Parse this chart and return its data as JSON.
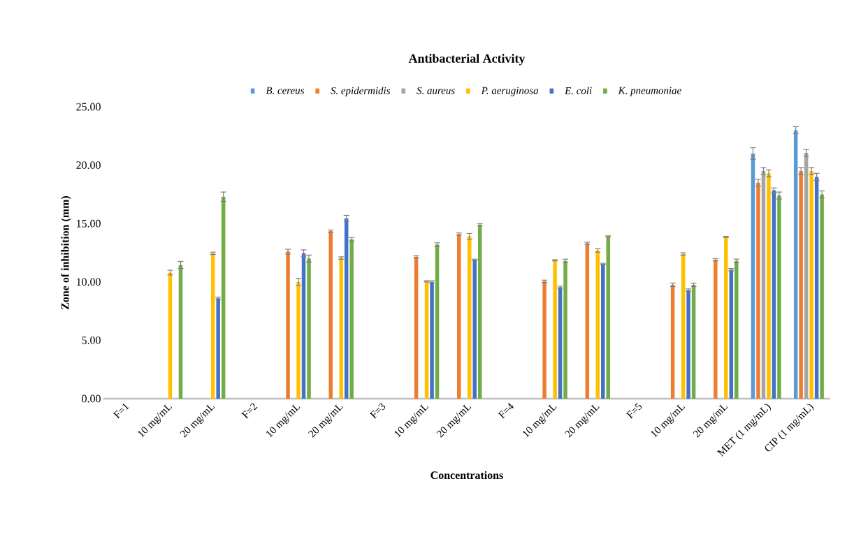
{
  "chart_data": {
    "type": "bar",
    "title": "Antibacterial Activity",
    "xlabel": "Concentrations",
    "ylabel": "Zone of inhibition (mm)",
    "categories": [
      "F=1",
      "10 mg/mL",
      "20 mg/mL",
      "F=2",
      "10 mg/mL",
      "20 mg/mL",
      "F=3",
      "10 mg/mL",
      "20 mg/mL",
      "F=4",
      "10 mg/mL",
      "20 mg/mL",
      "F=5",
      "10 mg/mL",
      "20 mg/mL",
      "MET (1 mg/mL)",
      "CIP (1 mg/mL)"
    ],
    "series": [
      {
        "name": "B. cereus",
        "color": "#5b9bd5",
        "values": [
          null,
          null,
          null,
          null,
          null,
          null,
          null,
          null,
          null,
          null,
          null,
          null,
          null,
          null,
          null,
          21.0,
          23.0
        ],
        "errors": [
          null,
          null,
          null,
          null,
          null,
          null,
          null,
          null,
          null,
          null,
          null,
          null,
          null,
          null,
          null,
          0.5,
          0.3
        ]
      },
      {
        "name": "S. epidermidis",
        "color": "#ed7d31",
        "values": [
          null,
          null,
          null,
          null,
          12.6,
          14.35,
          null,
          12.15,
          14.1,
          null,
          10.05,
          13.3,
          null,
          9.75,
          11.9,
          18.5,
          19.5
        ],
        "errors": [
          null,
          null,
          null,
          null,
          0.2,
          0.1,
          null,
          0.1,
          0.1,
          null,
          0.1,
          0.1,
          null,
          0.15,
          0.1,
          0.3,
          0.3
        ]
      },
      {
        "name": "S. aureus",
        "color": "#a5a5a5",
        "values": [
          null,
          null,
          null,
          null,
          null,
          null,
          null,
          null,
          null,
          null,
          null,
          null,
          null,
          null,
          null,
          19.5,
          21.05
        ],
        "errors": [
          null,
          null,
          null,
          null,
          null,
          null,
          null,
          null,
          null,
          null,
          null,
          null,
          null,
          null,
          null,
          0.3,
          0.3
        ]
      },
      {
        "name": "P. aeruginosa",
        "color": "#ffc000",
        "values": [
          null,
          10.8,
          12.45,
          null,
          10.0,
          12.05,
          null,
          10.05,
          13.9,
          null,
          11.85,
          12.7,
          null,
          12.4,
          13.85,
          19.3,
          19.5
        ],
        "errors": [
          null,
          0.2,
          0.1,
          null,
          0.3,
          0.1,
          null,
          0.05,
          0.25,
          null,
          0.05,
          0.15,
          null,
          0.1,
          0.05,
          0.3,
          0.3
        ]
      },
      {
        "name": "E. coli",
        "color": "#4472c4",
        "values": [
          null,
          null,
          8.6,
          null,
          12.45,
          15.45,
          null,
          10.0,
          11.9,
          null,
          9.55,
          11.55,
          null,
          9.3,
          11.05,
          17.85,
          19.0
        ],
        "errors": [
          null,
          null,
          0.1,
          null,
          0.3,
          0.25,
          null,
          0.1,
          0.05,
          null,
          0.1,
          0.05,
          null,
          0.1,
          0.1,
          0.2,
          0.3
        ]
      },
      {
        "name": "K. pneumoniae",
        "color": "#70ad47",
        "values": [
          null,
          11.45,
          17.3,
          null,
          12.0,
          13.65,
          null,
          13.2,
          14.9,
          null,
          11.8,
          13.9,
          null,
          9.75,
          11.8,
          17.4,
          17.5
        ],
        "errors": [
          null,
          0.3,
          0.4,
          null,
          0.3,
          0.15,
          null,
          0.15,
          0.1,
          null,
          0.15,
          0.05,
          null,
          0.15,
          0.15,
          0.3,
          0.3
        ]
      }
    ],
    "ylim": [
      0,
      25
    ],
    "yticks": [
      {
        "value": 0,
        "label": "0.00"
      },
      {
        "value": 5,
        "label": "5.00"
      },
      {
        "value": 10,
        "label": "10.00"
      },
      {
        "value": 15,
        "label": "15.00"
      },
      {
        "value": 20,
        "label": "20.00"
      },
      {
        "value": 25,
        "label": "25.00"
      }
    ],
    "legend": "top",
    "grid": false
  }
}
